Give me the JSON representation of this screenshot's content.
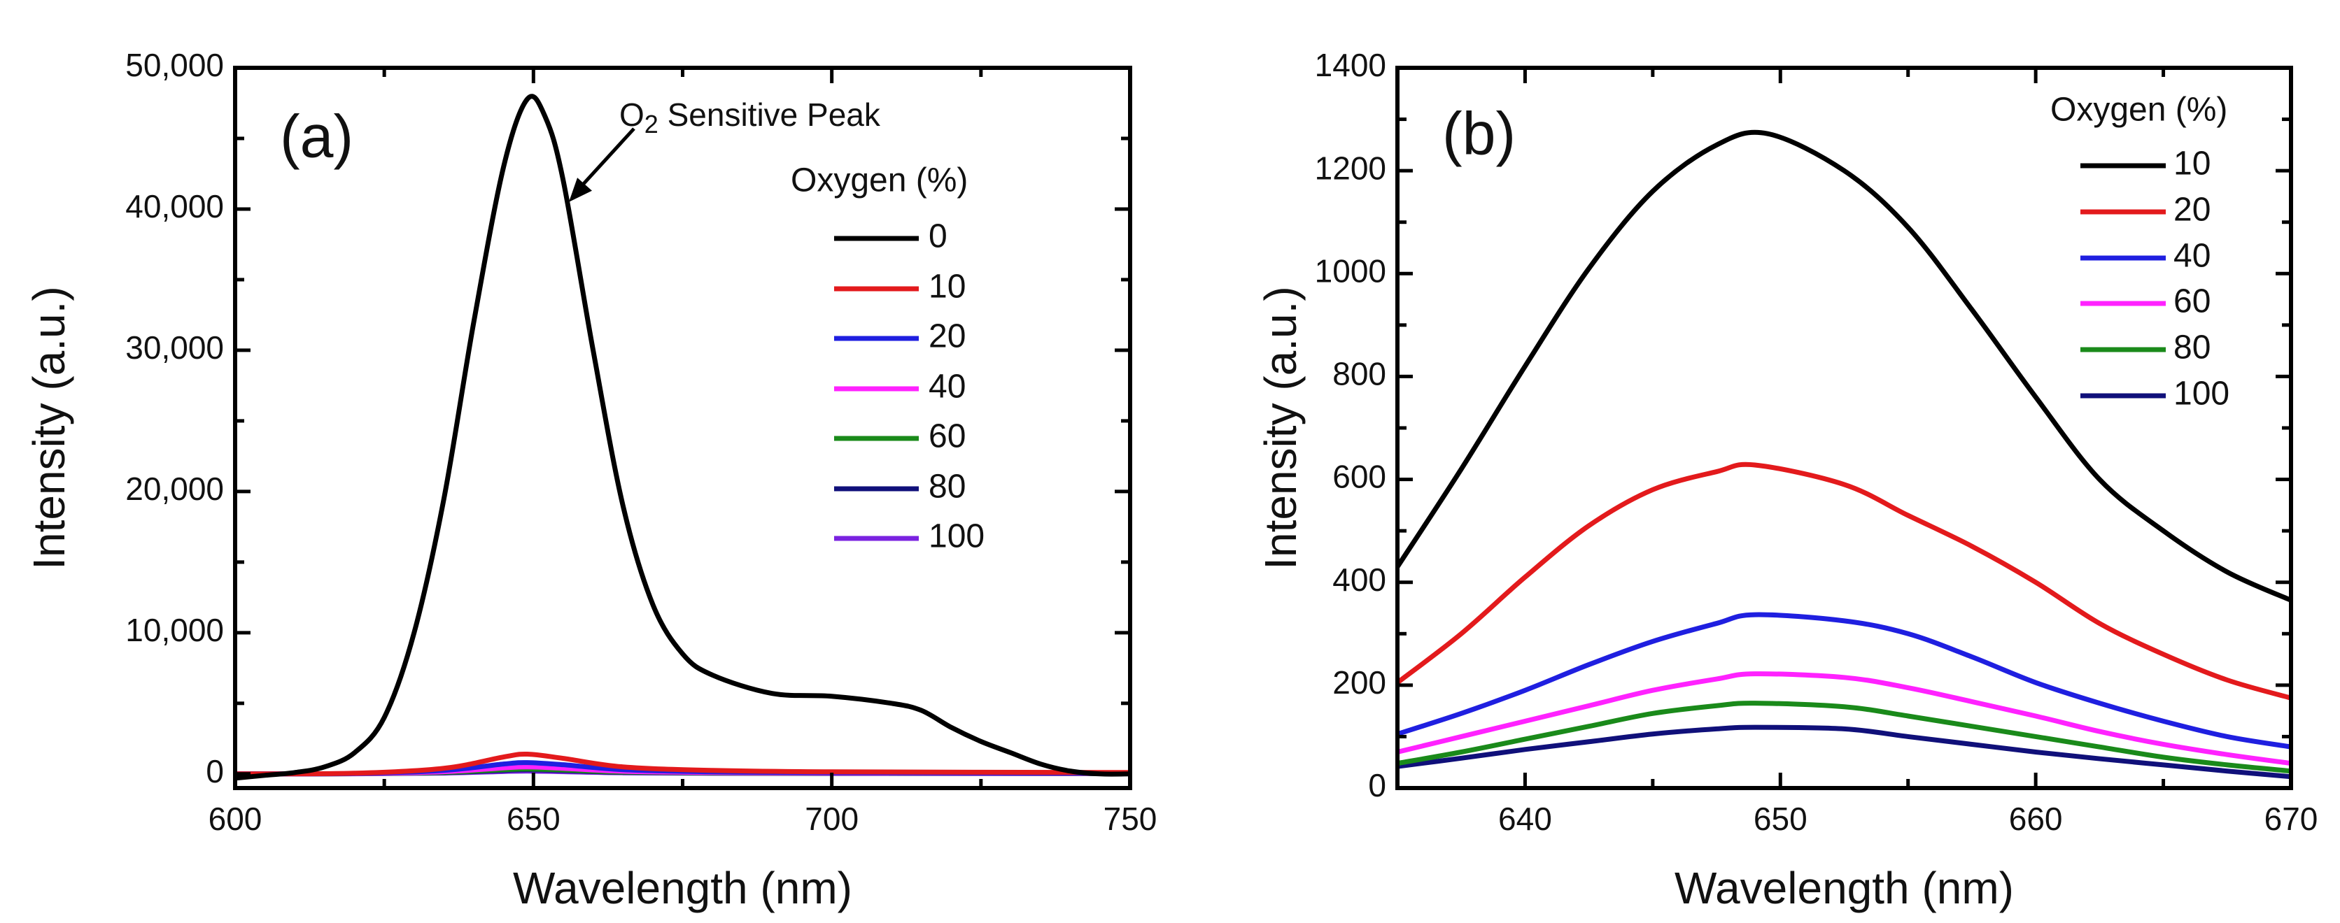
{
  "chart_data": [
    {
      "type": "line",
      "panel_label": "(a)",
      "xlabel": "Wavelength (nm)",
      "ylabel": "Intensity (a.u.)",
      "xlim": [
        600,
        750
      ],
      "ylim": [
        -1000,
        50000
      ],
      "xticks": [
        600,
        650,
        700,
        750
      ],
      "xtick_labels": [
        "600",
        "650",
        "700",
        "750"
      ],
      "yticks": [
        0,
        10000,
        20000,
        30000,
        40000,
        50000
      ],
      "ytick_labels": [
        "0",
        "10,000",
        "20,000",
        "30,000",
        "40,000",
        "50,000"
      ],
      "x_minor_step": 25,
      "y_minor_step": 5000,
      "legend_title": "Oxygen (%)",
      "legend_placement": "top-right",
      "annotation": {
        "text_main": "O",
        "text_sub": "2",
        "text_rest": " Sensitive Peak",
        "points_to": [
          655,
          40500
        ]
      },
      "series": [
        {
          "name": "0",
          "color": "#000000",
          "x": [
            600,
            605,
            610,
            615,
            620,
            625,
            630,
            635,
            640,
            645,
            649,
            652,
            655,
            660,
            665,
            670,
            675,
            680,
            690,
            700,
            710,
            715,
            720,
            725,
            730,
            735,
            740,
            745,
            750
          ],
          "y": [
            -300,
            -100,
            100,
            500,
            1500,
            4000,
            10000,
            19500,
            32000,
            43000,
            47800,
            46500,
            42000,
            30000,
            19000,
            12000,
            8500,
            7000,
            5700,
            5500,
            5000,
            4500,
            3300,
            2300,
            1500,
            700,
            200,
            0,
            0
          ]
        },
        {
          "name": "10",
          "color": "#e31a1c",
          "x": [
            600,
            620,
            635,
            645,
            649,
            655,
            665,
            680,
            700,
            750
          ],
          "y": [
            0,
            50,
            400,
            1200,
            1400,
            1100,
            500,
            250,
            150,
            100
          ]
        },
        {
          "name": "20",
          "color": "#1f1fe0",
          "x": [
            600,
            620,
            635,
            645,
            649,
            655,
            665,
            680,
            700,
            750
          ],
          "y": [
            0,
            30,
            250,
            700,
            800,
            650,
            300,
            150,
            90,
            60
          ]
        },
        {
          "name": "40",
          "color": "#ff22ff",
          "x": [
            600,
            620,
            635,
            645,
            649,
            655,
            665,
            680,
            700,
            750
          ],
          "y": [
            0,
            20,
            160,
            430,
            500,
            400,
            190,
            100,
            60,
            40
          ]
        },
        {
          "name": "60",
          "color": "#1a8a1a",
          "x": [
            600,
            620,
            635,
            645,
            649,
            655,
            665,
            680,
            700,
            750
          ],
          "y": [
            0,
            15,
            110,
            300,
            350,
            280,
            130,
            70,
            45,
            30
          ]
        },
        {
          "name": "80",
          "color": "#10107a",
          "x": [
            600,
            620,
            635,
            645,
            649,
            655,
            665,
            680,
            700,
            750
          ],
          "y": [
            0,
            12,
            90,
            250,
            300,
            240,
            110,
            60,
            40,
            25
          ]
        },
        {
          "name": "100",
          "color": "#7a22e0",
          "x": [
            600,
            620,
            635,
            645,
            649,
            655,
            665,
            680,
            700,
            750
          ],
          "y": [
            0,
            10,
            60,
            170,
            200,
            160,
            80,
            45,
            30,
            20
          ]
        }
      ]
    },
    {
      "type": "line",
      "panel_label": "(b)",
      "xlabel": "Wavelength (nm)",
      "ylabel": "Intensity (a.u.)",
      "xlim": [
        635,
        670
      ],
      "ylim": [
        0,
        1400
      ],
      "xticks": [
        640,
        650,
        660,
        670
      ],
      "xtick_labels": [
        "640",
        "650",
        "660",
        "670"
      ],
      "yticks": [
        0,
        200,
        400,
        600,
        800,
        1000,
        1200,
        1400
      ],
      "ytick_labels": [
        "0",
        "200",
        "400",
        "600",
        "800",
        "1000",
        "1200",
        "1400"
      ],
      "x_minor_step": 5,
      "y_minor_step": 100,
      "legend_title": "Oxygen (%)",
      "legend_placement": "top-right",
      "series": [
        {
          "name": "10",
          "color": "#000000",
          "x": [
            635,
            637.5,
            640,
            642.5,
            645,
            647.5,
            649.5,
            652.5,
            655,
            657.5,
            660,
            662.5,
            665,
            667.5,
            670
          ],
          "y": [
            430,
            620,
            820,
            1010,
            1160,
            1250,
            1272,
            1200,
            1090,
            930,
            760,
            600,
            500,
            420,
            365
          ]
        },
        {
          "name": "20",
          "color": "#e31a1c",
          "x": [
            635,
            637.5,
            640,
            642.5,
            645,
            647.5,
            649,
            652.5,
            655,
            657.5,
            660,
            662.5,
            665,
            667.5,
            670
          ],
          "y": [
            205,
            300,
            410,
            510,
            580,
            615,
            628,
            590,
            530,
            470,
            400,
            320,
            260,
            210,
            175
          ]
        },
        {
          "name": "40",
          "color": "#1f1fe0",
          "x": [
            635,
            637.5,
            640,
            642.5,
            645,
            647.5,
            649,
            652.5,
            655,
            657.5,
            660,
            662.5,
            665,
            667.5,
            670
          ],
          "y": [
            105,
            145,
            190,
            240,
            285,
            320,
            337,
            325,
            300,
            255,
            205,
            165,
            130,
            100,
            80
          ]
        },
        {
          "name": "60",
          "color": "#ff22ff",
          "x": [
            635,
            637.5,
            640,
            642.5,
            645,
            647.5,
            649,
            652.5,
            655,
            657.5,
            660,
            662.5,
            665,
            667.5,
            670
          ],
          "y": [
            70,
            100,
            130,
            160,
            190,
            212,
            222,
            215,
            195,
            168,
            140,
            110,
            85,
            65,
            48
          ]
        },
        {
          "name": "80",
          "color": "#1a8a1a",
          "x": [
            635,
            637.5,
            640,
            642.5,
            645,
            647.5,
            649,
            652.5,
            655,
            657.5,
            660,
            662.5,
            665,
            667.5,
            670
          ],
          "y": [
            48,
            70,
            95,
            120,
            145,
            160,
            165,
            158,
            140,
            120,
            100,
            80,
            60,
            45,
            33
          ]
        },
        {
          "name": "100",
          "color": "#10107a",
          "x": [
            635,
            637.5,
            640,
            642.5,
            645,
            647.5,
            649,
            652.5,
            655,
            657.5,
            660,
            662.5,
            665,
            667.5,
            670
          ],
          "y": [
            42,
            58,
            75,
            90,
            105,
            115,
            118,
            115,
            100,
            85,
            70,
            57,
            45,
            33,
            22
          ]
        }
      ]
    }
  ]
}
